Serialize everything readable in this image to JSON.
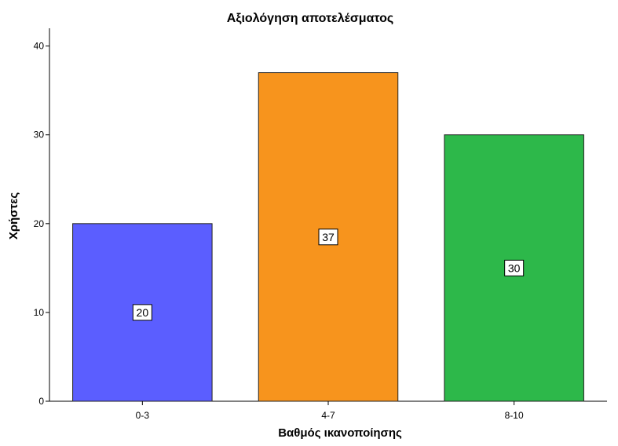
{
  "chart_data": {
    "type": "bar",
    "title": "Αξιολόγηση αποτελέσματος",
    "xlabel": "Βαθμός ικανοποίησης",
    "ylabel": "Χρήστες",
    "categories": [
      "0-3",
      "4-7",
      "8-10"
    ],
    "values": [
      20,
      37,
      30
    ],
    "data_labels": [
      "20",
      "37",
      "30"
    ],
    "colors": [
      "#5b5eff",
      "#f7941d",
      "#2db84a"
    ],
    "ylim": [
      0,
      42
    ],
    "yticks": [
      0,
      10,
      20,
      30,
      40
    ],
    "ytick_labels": [
      "0",
      "10",
      "20",
      "30",
      "40"
    ],
    "grid": false,
    "legend": "none"
  }
}
